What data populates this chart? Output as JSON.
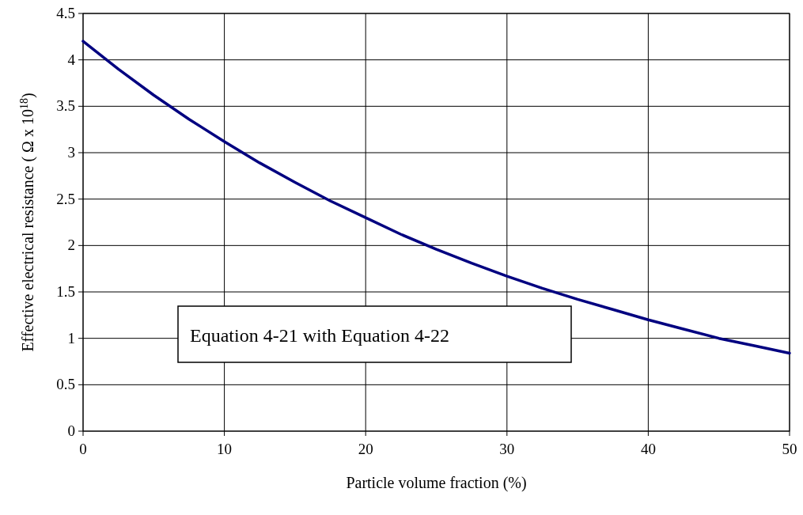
{
  "chart_data": {
    "type": "line",
    "xlabel": "Particle volume fraction (%)",
    "ylabel": "Effective electrical resistance ( Ω x 10$^{18}$)",
    "x": [
      0,
      2.5,
      5,
      7.5,
      10,
      12.5,
      15,
      17.5,
      20,
      22.5,
      25,
      27.5,
      30,
      32.5,
      35,
      37.5,
      40,
      42.5,
      45,
      47.5,
      50
    ],
    "series": [
      {
        "color": "#000080",
        "values": [
          4.2,
          3.9,
          3.62,
          3.36,
          3.12,
          2.89,
          2.68,
          2.48,
          2.3,
          2.12,
          1.96,
          1.81,
          1.67,
          1.54,
          1.42,
          1.31,
          1.2,
          1.1,
          1.0,
          0.92,
          0.84
        ]
      }
    ],
    "xlim": [
      0,
      50
    ],
    "xticks": [
      0,
      10,
      20,
      30,
      40,
      50
    ],
    "ylim": [
      0,
      4.5
    ],
    "yticks": [
      0,
      0.5,
      1,
      1.5,
      2,
      2.5,
      3,
      3.5,
      4,
      4.5
    ],
    "grid": true,
    "marker": "none",
    "line_style": "solid",
    "annotations": [
      "Equation 4-21 with Equation 4-22"
    ]
  }
}
